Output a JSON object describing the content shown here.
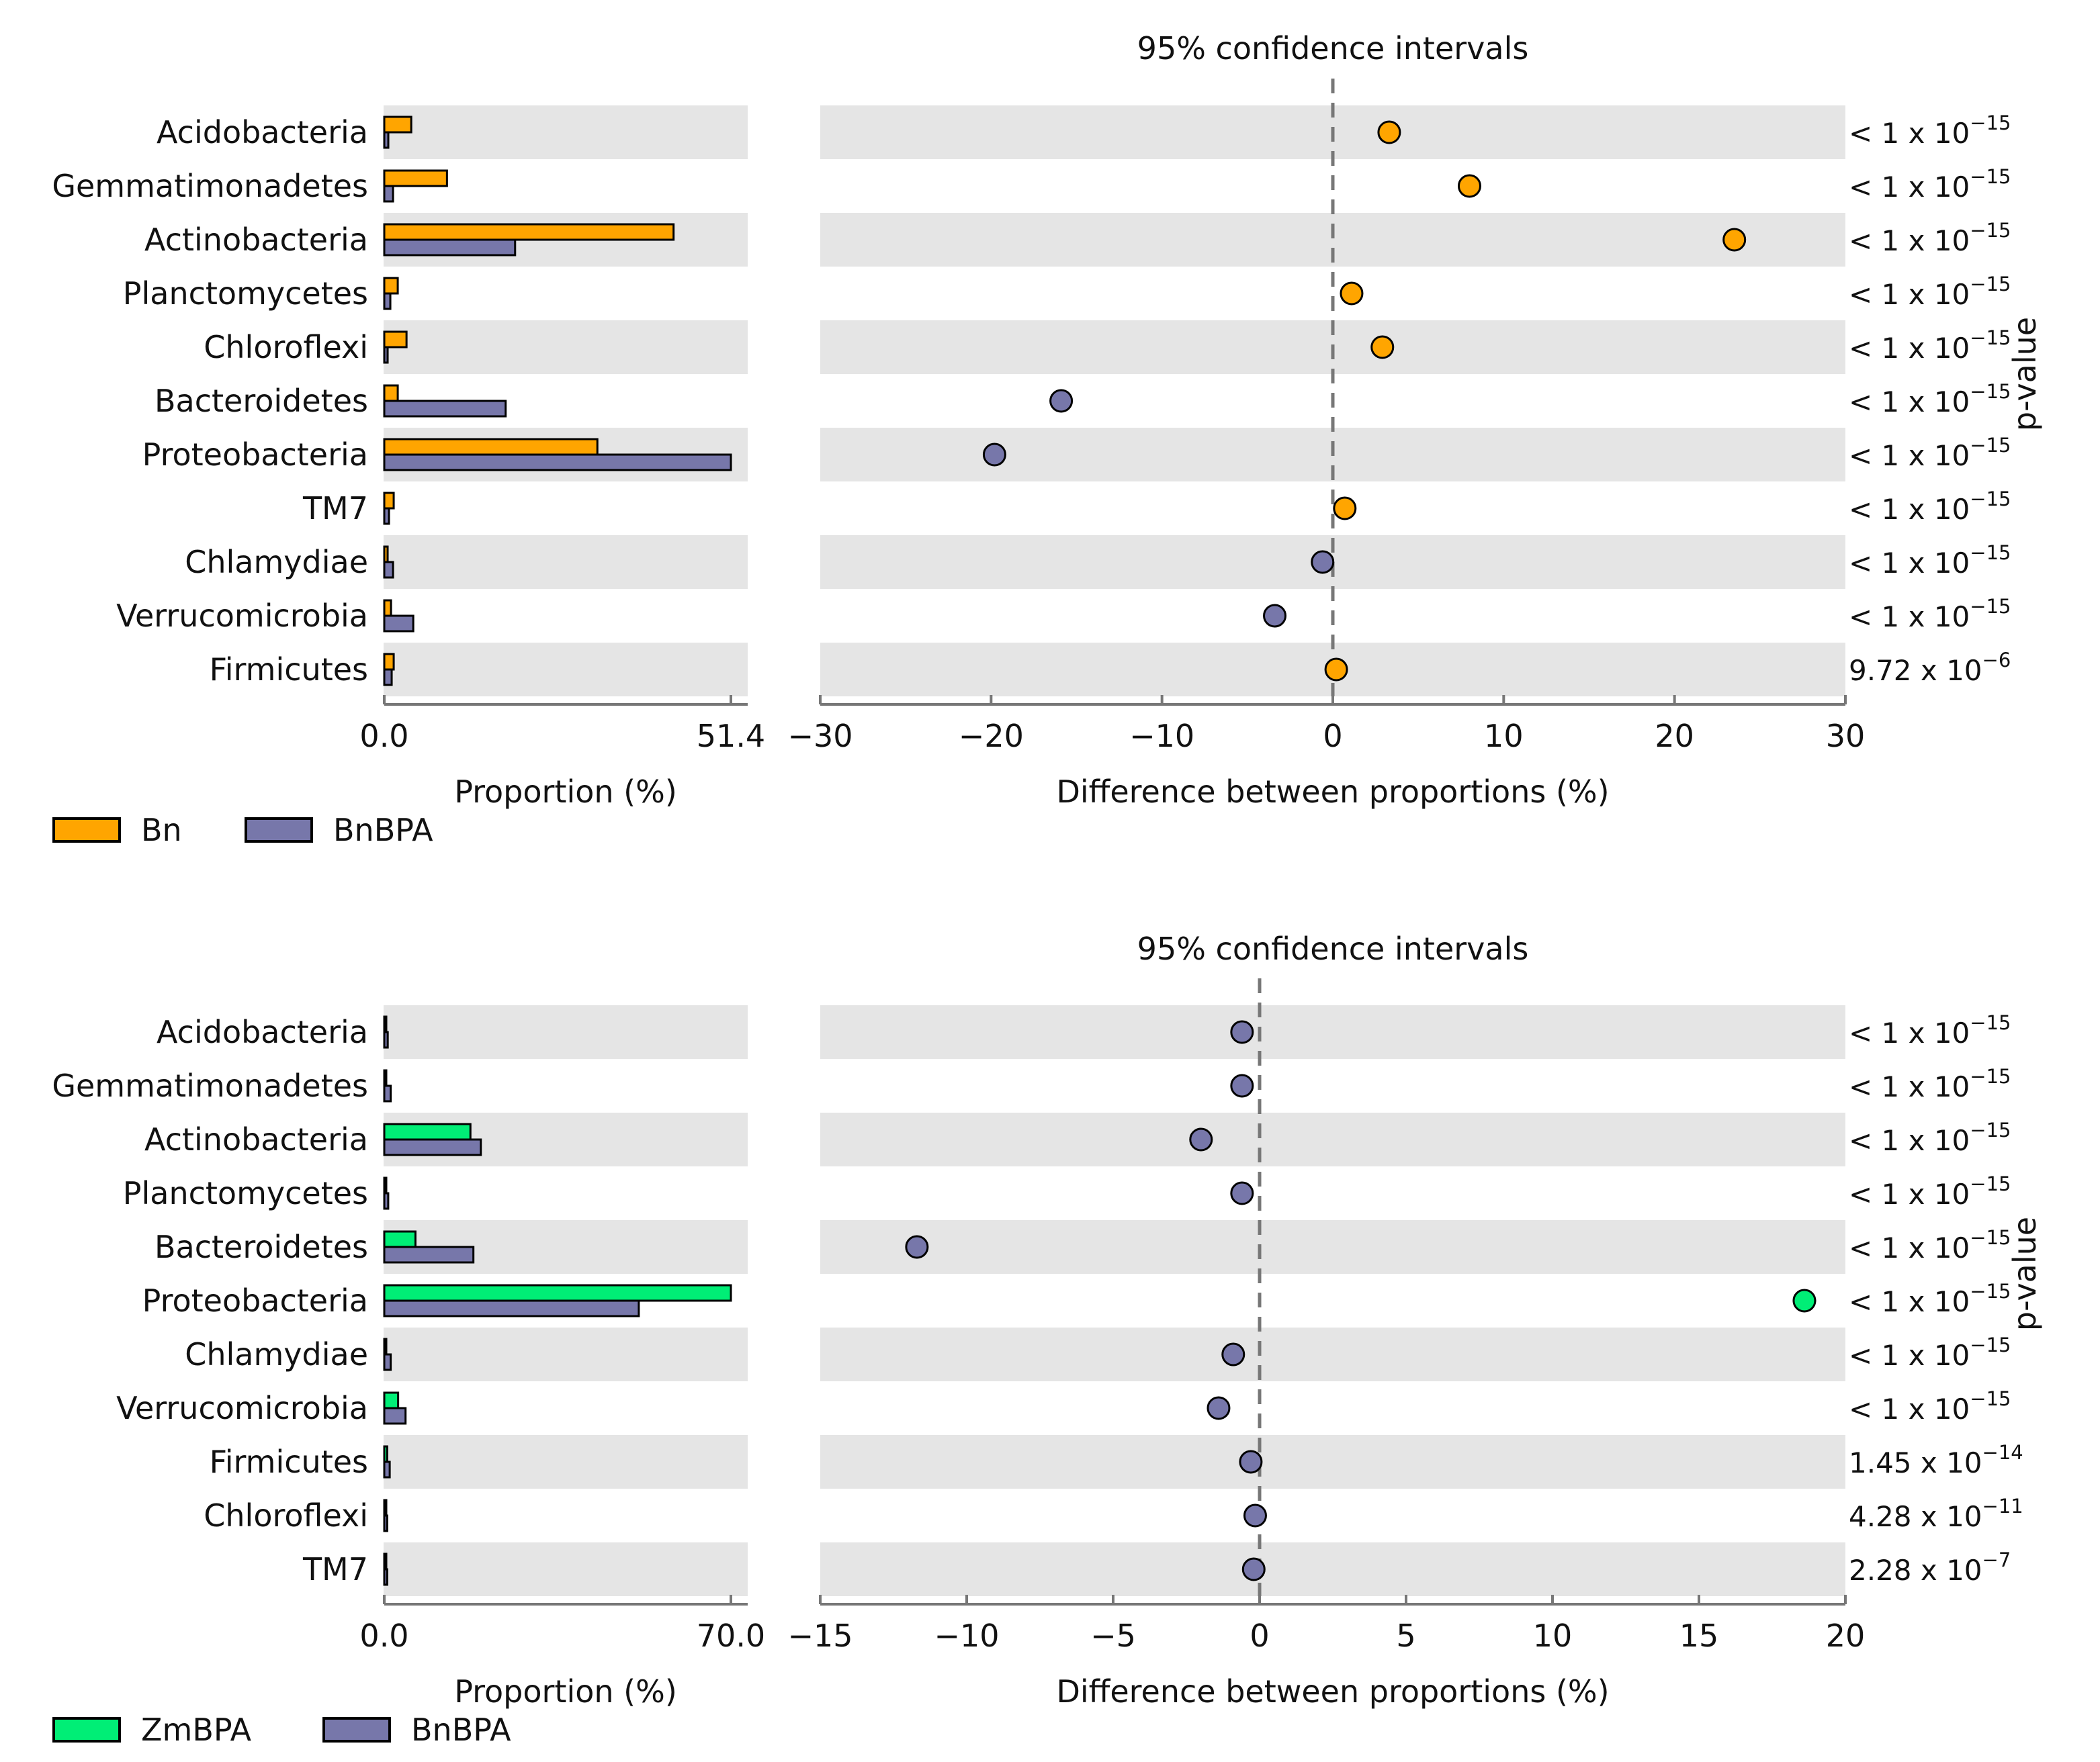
{
  "chart_data": [
    {
      "type": "extended-error-bar",
      "ci_title": "95% confidence intervals",
      "side_title": "p-value",
      "legend": [
        {
          "name": "Bn",
          "color": "#ffa500"
        },
        {
          "name": "BnBPA",
          "color": "#7777aa"
        }
      ],
      "categories": [
        "Acidobacteria",
        "Gemmatimonadetes",
        "Actinobacteria",
        "Planctomycetes",
        "Chloroflexi",
        "Bacteroidetes",
        "Proteobacteria",
        "TM7",
        "Chlamydiae",
        "Verrucomicrobia",
        "Firmicutes"
      ],
      "series": [
        {
          "name": "Bn",
          "values": [
            4.0,
            9.3,
            42.9,
            2.0,
            3.3,
            2.0,
            31.6,
            1.4,
            0.5,
            1.0,
            1.4
          ]
        },
        {
          "name": "BnBPA",
          "values": [
            0.6,
            1.3,
            19.4,
            0.9,
            0.5,
            18.0,
            51.4,
            0.7,
            1.3,
            4.3,
            1.1
          ]
        }
      ],
      "prop_xlim": [
        0,
        51.4
      ],
      "prop_ticks": [
        "0.0",
        "51.4"
      ],
      "prop_xlabel": "Proportion (%)",
      "diff": [
        3.3,
        8.0,
        23.5,
        1.1,
        2.9,
        -15.9,
        -19.8,
        0.7,
        -0.6,
        -3.4,
        0.2
      ],
      "diff_err": [
        0.3,
        0.4,
        0.6,
        0.2,
        0.2,
        0.5,
        0.6,
        0.2,
        0.1,
        0.2,
        0.3
      ],
      "point_colors": [
        "#ffa500",
        "#ffa500",
        "#ffa500",
        "#ffa500",
        "#ffa500",
        "#7777aa",
        "#7777aa",
        "#ffa500",
        "#7777aa",
        "#7777aa",
        "#ffa500"
      ],
      "diff_xlim": [
        -30,
        30
      ],
      "diff_ticks": [
        -30,
        -20,
        -10,
        0,
        10,
        20,
        30
      ],
      "diff_tick_labels": [
        "−30",
        "−20",
        "−10",
        "0",
        "10",
        "20",
        "30"
      ],
      "diff_xlabel": "Difference between proportions (%)",
      "pvalues": [
        {
          "base": "< 1 x 10",
          "exp": "−15"
        },
        {
          "base": "< 1 x 10",
          "exp": "−15"
        },
        {
          "base": "< 1 x 10",
          "exp": "−15"
        },
        {
          "base": "< 1 x 10",
          "exp": "−15"
        },
        {
          "base": "< 1 x 10",
          "exp": "−15"
        },
        {
          "base": "< 1 x 10",
          "exp": "−15"
        },
        {
          "base": "< 1 x 10",
          "exp": "−15"
        },
        {
          "base": "< 1 x 10",
          "exp": "−15"
        },
        {
          "base": "< 1 x 10",
          "exp": "−15"
        },
        {
          "base": "< 1 x 10",
          "exp": "−15"
        },
        {
          "base": "9.72 x 10",
          "exp": "−6"
        }
      ]
    },
    {
      "type": "extended-error-bar",
      "ci_title": "95% confidence intervals",
      "side_title": "p-value",
      "legend": [
        {
          "name": "ZmBPA",
          "color": "#00ee76"
        },
        {
          "name": "BnBPA",
          "color": "#7777aa"
        }
      ],
      "categories": [
        "Acidobacteria",
        "Gemmatimonadetes",
        "Actinobacteria",
        "Planctomycetes",
        "Bacteroidetes",
        "Proteobacteria",
        "Chlamydiae",
        "Verrucomicrobia",
        "Firmicutes",
        "Chloroflexi",
        "TM7"
      ],
      "series": [
        {
          "name": "ZmBPA",
          "values": [
            0.2,
            0.2,
            17.4,
            0.2,
            6.3,
            70.0,
            0.2,
            2.8,
            0.6,
            0.2,
            0.3
          ]
        },
        {
          "name": "BnBPA",
          "values": [
            0.7,
            1.3,
            19.5,
            0.8,
            18.0,
            51.4,
            1.3,
            4.3,
            1.1,
            0.6,
            0.6
          ]
        }
      ],
      "prop_xlim": [
        0,
        70.0
      ],
      "prop_ticks": [
        "0.0",
        "70.0"
      ],
      "prop_xlabel": "Proportion (%)",
      "diff": [
        -0.6,
        -0.6,
        -2.0,
        -0.6,
        -11.7,
        18.6,
        -0.9,
        -1.4,
        -0.3,
        -0.15,
        -0.2
      ],
      "diff_err": [
        0.1,
        0.1,
        0.3,
        0.1,
        0.3,
        0.4,
        0.1,
        0.15,
        0.1,
        0.05,
        0.05
      ],
      "point_colors": [
        "#7777aa",
        "#7777aa",
        "#7777aa",
        "#7777aa",
        "#7777aa",
        "#00ee76",
        "#7777aa",
        "#7777aa",
        "#7777aa",
        "#7777aa",
        "#7777aa"
      ],
      "diff_xlim": [
        -15,
        20
      ],
      "diff_ticks": [
        -15,
        -10,
        -5,
        0,
        5,
        10,
        15,
        20
      ],
      "diff_tick_labels": [
        "−15",
        "−10",
        "−5",
        "0",
        "5",
        "10",
        "15",
        "20"
      ],
      "diff_xlabel": "Difference between proportions (%)",
      "pvalues": [
        {
          "base": "< 1 x 10",
          "exp": "−15"
        },
        {
          "base": "< 1 x 10",
          "exp": "−15"
        },
        {
          "base": "< 1 x 10",
          "exp": "−15"
        },
        {
          "base": "< 1 x 10",
          "exp": "−15"
        },
        {
          "base": "< 1 x 10",
          "exp": "−15"
        },
        {
          "base": "< 1 x 10",
          "exp": "−15"
        },
        {
          "base": "< 1 x 10",
          "exp": "−15"
        },
        {
          "base": "< 1 x 10",
          "exp": "−15"
        },
        {
          "base": "1.45 x 10",
          "exp": "−14"
        },
        {
          "base": "4.28 x 10",
          "exp": "−11"
        },
        {
          "base": "2.28 x 10",
          "exp": "−7"
        }
      ]
    }
  ]
}
